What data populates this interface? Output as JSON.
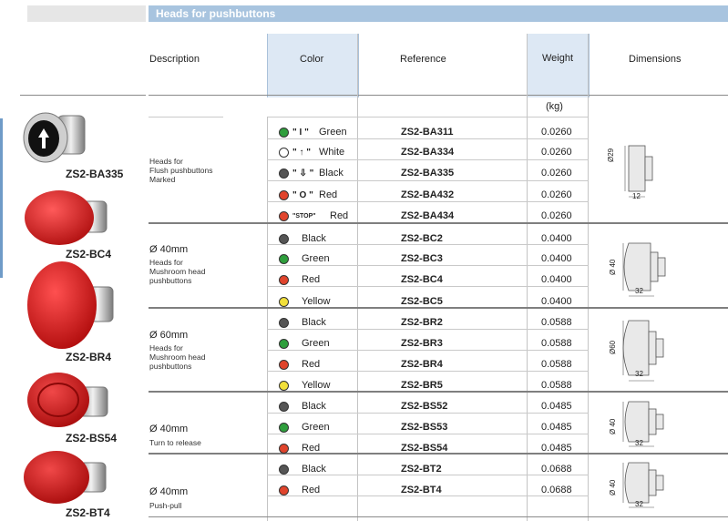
{
  "banner": {
    "title": "Heads for pushbuttons"
  },
  "headers": {
    "description": "Description",
    "color": "Color",
    "reference": "Reference",
    "weight": "Weight",
    "weight_unit": "(kg)",
    "dimensions": "Dimensions"
  },
  "products": [
    {
      "label": "ZS2-BA335"
    },
    {
      "label": "ZS2-BC4"
    },
    {
      "label": "ZS2-BR4"
    },
    {
      "label": "ZS2-BS54"
    },
    {
      "label": "ZS2-BT4"
    }
  ],
  "groups": [
    {
      "size": "",
      "desc": "Heads for\nFlush pushbuttons\nMarked",
      "dim_d": "Ø29",
      "dim_w": "12"
    },
    {
      "size": "Ø 40mm",
      "desc": "Heads for\nMushroom head\npushbuttons",
      "dim_d": "Ø 40",
      "dim_w": "32"
    },
    {
      "size": "Ø 60mm",
      "desc": "Heads for\nMushroom head\npushbuttons",
      "dim_d": "Ø60",
      "dim_w": "32"
    },
    {
      "size": "Ø 40mm",
      "desc": "Turn to release",
      "dim_d": "Ø 40",
      "dim_w": "32"
    },
    {
      "size": "Ø 40mm",
      "desc": "Push-pull",
      "dim_d": "Ø 40",
      "dim_w": "32"
    }
  ],
  "rows": [
    {
      "symbol": "\" I \"",
      "color": "Green",
      "ref": "ZS2-BA311",
      "weight": "0.0260",
      "dot": "#2e9e3c"
    },
    {
      "symbol": "\" ↑ \"",
      "color": "White",
      "ref": "ZS2-BA334",
      "weight": "0.0260",
      "dot": "#ffffff"
    },
    {
      "symbol": "\" ⇩ \"",
      "color": "Black",
      "ref": "ZS2-BA335",
      "weight": "0.0260",
      "dot": "#555555"
    },
    {
      "symbol": "\" O \"",
      "color": "Red",
      "ref": "ZS2-BA432",
      "weight": "0.0260",
      "dot": "#e0442c"
    },
    {
      "symbol": "\"STOP\"",
      "color": "Red",
      "ref": "ZS2-BA434",
      "weight": "0.0260",
      "dot": "#e0442c"
    },
    {
      "symbol": "",
      "color": "Black",
      "ref": "ZS2-BC2",
      "weight": "0.0400",
      "dot": "#555555"
    },
    {
      "symbol": "",
      "color": "Green",
      "ref": "ZS2-BC3",
      "weight": "0.0400",
      "dot": "#2e9e3c"
    },
    {
      "symbol": "",
      "color": "Red",
      "ref": "ZS2-BC4",
      "weight": "0.0400",
      "dot": "#e0442c"
    },
    {
      "symbol": "",
      "color": "Yellow",
      "ref": "ZS2-BC5",
      "weight": "0.0400",
      "dot": "#f2e03a"
    },
    {
      "symbol": "",
      "color": "Black",
      "ref": "ZS2-BR2",
      "weight": "0.0588",
      "dot": "#555555"
    },
    {
      "symbol": "",
      "color": "Green",
      "ref": "ZS2-BR3",
      "weight": "0.0588",
      "dot": "#2e9e3c"
    },
    {
      "symbol": "",
      "color": "Red",
      "ref": "ZS2-BR4",
      "weight": "0.0588",
      "dot": "#e0442c"
    },
    {
      "symbol": "",
      "color": "Yellow",
      "ref": "ZS2-BR5",
      "weight": "0.0588",
      "dot": "#f2e03a"
    },
    {
      "symbol": "",
      "color": "Black",
      "ref": "ZS2-BS52",
      "weight": "0.0485",
      "dot": "#555555"
    },
    {
      "symbol": "",
      "color": "Green",
      "ref": "ZS2-BS53",
      "weight": "0.0485",
      "dot": "#2e9e3c"
    },
    {
      "symbol": "",
      "color": "Red",
      "ref": "ZS2-BS54",
      "weight": "0.0485",
      "dot": "#e0442c"
    },
    {
      "symbol": "",
      "color": "Black",
      "ref": "ZS2-BT2",
      "weight": "0.0688",
      "dot": "#555555"
    },
    {
      "symbol": "",
      "color": "Red",
      "ref": "ZS2-BT4",
      "weight": "0.0688",
      "dot": "#e0442c"
    }
  ]
}
